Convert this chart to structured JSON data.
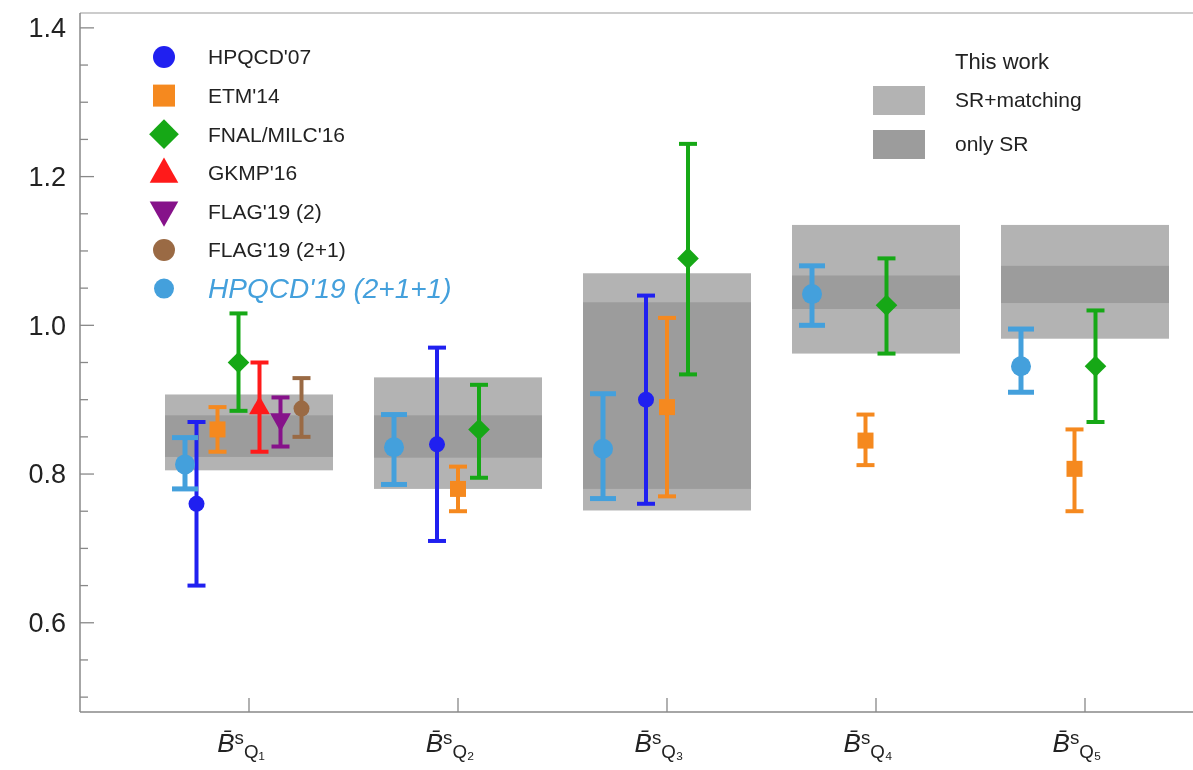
{
  "chart_data": {
    "type": "scatter",
    "categories": [
      "B̄$^{s}$$_{Q₁}$",
      "B̄$^{s}$$_{Q₂}$",
      "B̄$^{s}$$_{Q₃}$",
      "B̄$^{s}$$_{Q₄}$",
      "B̄$^{s}$$_{Q₅}$"
    ],
    "ylim": [
      0.48,
      1.42
    ],
    "yticks": [
      {
        "value": 0.5,
        "label": null
      },
      {
        "value": 0.55,
        "label": null
      },
      0.6,
      {
        "value": 0.65,
        "label": null
      },
      {
        "value": 0.7,
        "label": null
      },
      {
        "value": 0.75,
        "label": null
      },
      0.8,
      {
        "value": 0.85,
        "label": null
      },
      {
        "value": 0.9,
        "label": null
      },
      {
        "value": 0.95,
        "label": null
      },
      {
        "value": 1,
        "label": "1.0"
      },
      {
        "value": 1.05,
        "label": null
      },
      {
        "value": 1.1,
        "label": null
      },
      {
        "value": 1.15,
        "label": null
      },
      1.2,
      {
        "value": 1.25,
        "label": null
      },
      {
        "value": 1.3,
        "label": null
      },
      {
        "value": 1.35,
        "label": null
      },
      1.4
    ],
    "legend": "top left",
    "legend_title": "This work",
    "series": [
      {
        "name": "SR+matching",
        "type": "bar",
        "color": "#b3b3b3",
        "base": [
          0.805,
          0.78,
          0.751,
          0.962,
          0.982
        ],
        "values": [
          0.102,
          0.15,
          0.319,
          0.173,
          0.153
        ]
      },
      {
        "name": "only SR",
        "type": "bar",
        "color": "#9c9c9c",
        "base": [
          0.823,
          0.822,
          0.78,
          1.022,
          1.03
        ],
        "values": [
          0.056,
          0.057,
          0.251,
          0.045,
          0.05
        ]
      },
      {
        "name": "HPQCD'07",
        "color": "#2020f0",
        "marker": "circle",
        "values": [
          0.76,
          0.84,
          0.9,
          null,
          null
        ],
        "errors": [
          [
            0.65,
            0.87
          ],
          [
            0.71,
            0.97
          ],
          [
            0.76,
            1.04
          ],
          null,
          null
        ]
      },
      {
        "name": "ETM'14",
        "color": "#f5891f",
        "marker": "square",
        "values": [
          0.86,
          0.78,
          0.89,
          0.845,
          0.807
        ],
        "errors": [
          [
            0.83,
            0.89
          ],
          [
            0.75,
            0.81
          ],
          [
            0.77,
            1.01
          ],
          [
            0.812,
            0.88
          ],
          [
            0.75,
            0.86
          ]
        ]
      },
      {
        "name": "FNAL/MILC'16",
        "color": "#16a816",
        "marker": "diamond",
        "values": [
          0.95,
          0.86,
          1.09,
          1.027,
          0.945
        ],
        "errors": [
          [
            0.885,
            1.016
          ],
          [
            0.795,
            0.92
          ],
          [
            0.934,
            1.244
          ],
          [
            0.962,
            1.09
          ],
          [
            0.87,
            1.02
          ]
        ]
      },
      {
        "name": "GKMP'16",
        "color": "#ff1a1a",
        "marker": "triangle",
        "values": [
          0.89,
          null,
          null,
          null,
          null
        ],
        "errors": [
          [
            0.83,
            0.95
          ],
          null,
          null,
          null,
          null
        ]
      },
      {
        "name": "FLAG'19 (2)",
        "color": "#86128a",
        "marker": "triangle-down",
        "values": [
          0.872,
          null,
          null,
          null,
          null
        ],
        "errors": [
          [
            0.837,
            0.903
          ],
          null,
          null,
          null,
          null
        ]
      },
      {
        "name": "FLAG'19 (2+1)",
        "color": "#9a6a44",
        "marker": "circle",
        "values": [
          0.888,
          null,
          null,
          null,
          null
        ],
        "errors": [
          [
            0.85,
            0.929
          ],
          null,
          null,
          null,
          null
        ]
      },
      {
        "name": "HPQCD'19 (2+1+1)",
        "color": "#44a0dc",
        "marker": "circle",
        "values": [
          0.813,
          0.836,
          0.834,
          1.042,
          0.945
        ],
        "errors": [
          [
            0.78,
            0.849
          ],
          [
            0.786,
            0.88
          ],
          [
            0.767,
            0.908
          ],
          [
            1.0,
            1.08
          ],
          [
            0.91,
            0.995
          ]
        ]
      }
    ]
  }
}
